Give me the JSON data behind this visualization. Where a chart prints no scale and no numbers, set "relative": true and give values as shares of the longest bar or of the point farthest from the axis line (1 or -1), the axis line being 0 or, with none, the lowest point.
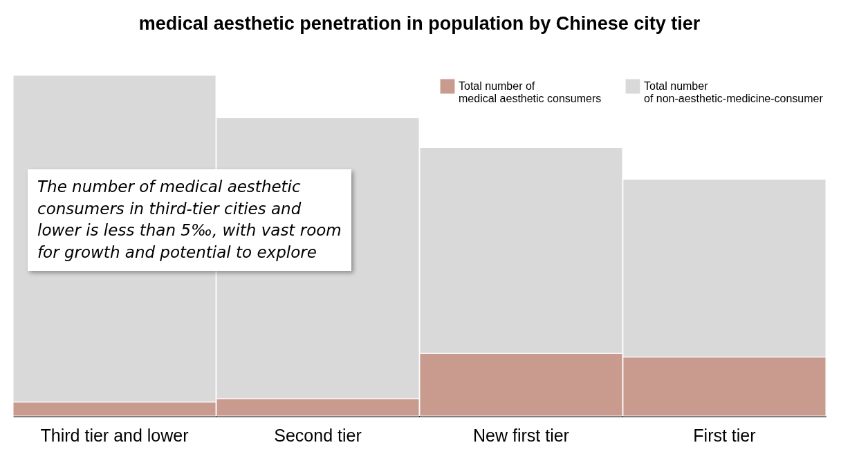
{
  "chart_data": {
    "type": "bar",
    "title": "medical aesthetic penetration in population by Chinese city tier",
    "categories": [
      "Third tier and lower",
      "Second tier",
      "New first tier",
      "First tier"
    ],
    "stacked": true,
    "relative": true,
    "legend": "top right",
    "series": [
      {
        "name": "Total number of medical aesthetic consumers",
        "color": "#c99a8e",
        "values": [
          0.041,
          0.051,
          0.184,
          0.173
        ]
      },
      {
        "name": "Total number of non-aesthetic-medicine-consumer",
        "color": "#d9d9d9",
        "values": [
          0.959,
          0.824,
          0.604,
          0.522
        ]
      }
    ],
    "annotations": [
      "The number of medical aesthetic consumers in third-tier cities and lower is less than 5‰, with vast room for growth and potential to explore"
    ]
  }
}
